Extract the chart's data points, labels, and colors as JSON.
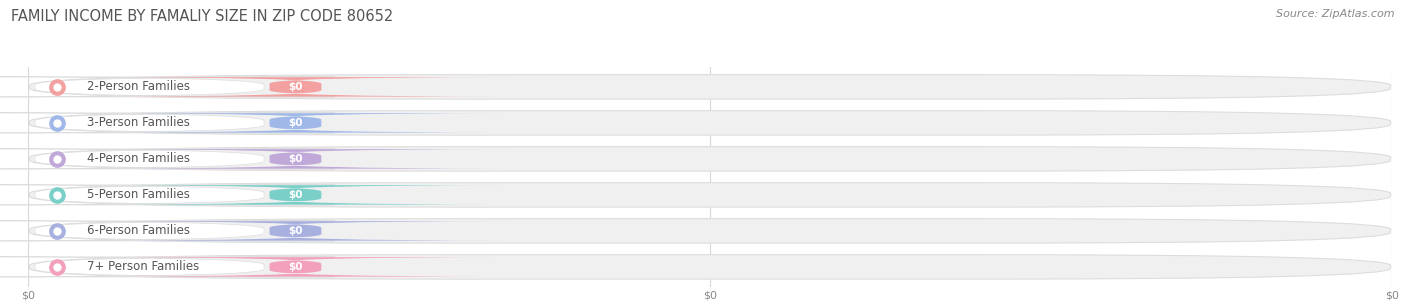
{
  "title": "FAMILY INCOME BY FAMALIY SIZE IN ZIP CODE 80652",
  "source": "Source: ZipAtlas.com",
  "categories": [
    "2-Person Families",
    "3-Person Families",
    "4-Person Families",
    "5-Person Families",
    "6-Person Families",
    "7+ Person Families"
  ],
  "values": [
    0,
    0,
    0,
    0,
    0,
    0
  ],
  "bar_colors": [
    "#F2A0A0",
    "#A0B8E8",
    "#C0A8D8",
    "#7ACFC8",
    "#A8B0E0",
    "#F2A0BC"
  ],
  "background_color": "#ffffff",
  "bar_bg_color": "#f0f0f0",
  "bar_border_color": "#dddddd",
  "grid_color": "#d8d8d8",
  "title_fontsize": 10.5,
  "source_fontsize": 8,
  "label_fontsize": 8.5,
  "value_fontsize": 7.5,
  "tick_fontsize": 8,
  "tick_color": "#888888"
}
